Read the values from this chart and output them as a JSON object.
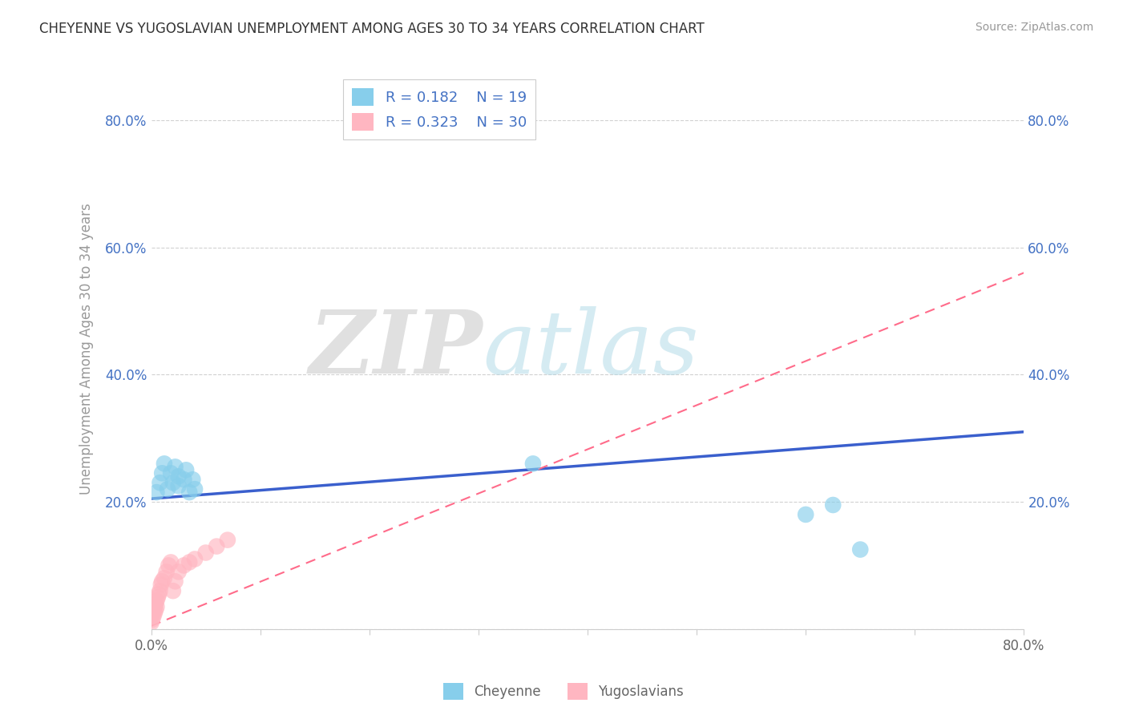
{
  "title": "CHEYENNE VS YUGOSLAVIAN UNEMPLOYMENT AMONG AGES 30 TO 34 YEARS CORRELATION CHART",
  "source_text": "Source: ZipAtlas.com",
  "ylabel": "Unemployment Among Ages 30 to 34 years",
  "xlim": [
    0.0,
    0.8
  ],
  "ylim": [
    0.0,
    0.88
  ],
  "cheyenne_color": "#87CEEB",
  "yugoslavian_color": "#FFB6C1",
  "cheyenne_line_color": "#3A5FCD",
  "yugoslavian_line_color": "#FF6B8A",
  "cheyenne_R": 0.182,
  "cheyenne_N": 19,
  "yugoslavian_R": 0.323,
  "yugoslavian_N": 30,
  "watermark_zip": "ZIP",
  "watermark_atlas": "atlas",
  "background_color": "#FFFFFF",
  "grid_color": "#CCCCCC",
  "cheyenne_x": [
    0.005,
    0.008,
    0.01,
    0.012,
    0.015,
    0.018,
    0.02,
    0.022,
    0.025,
    0.025,
    0.03,
    0.032,
    0.035,
    0.038,
    0.04,
    0.35,
    0.6,
    0.625,
    0.65
  ],
  "cheyenne_y": [
    0.215,
    0.23,
    0.245,
    0.26,
    0.22,
    0.245,
    0.23,
    0.255,
    0.225,
    0.24,
    0.235,
    0.25,
    0.215,
    0.235,
    0.22,
    0.26,
    0.18,
    0.195,
    0.125
  ],
  "yugoslavian_x": [
    0.0,
    0.0,
    0.001,
    0.001,
    0.002,
    0.002,
    0.003,
    0.003,
    0.004,
    0.004,
    0.005,
    0.005,
    0.006,
    0.007,
    0.008,
    0.009,
    0.01,
    0.012,
    0.014,
    0.016,
    0.018,
    0.02,
    0.022,
    0.025,
    0.03,
    0.035,
    0.04,
    0.05,
    0.06,
    0.07
  ],
  "yugoslavian_y": [
    0.01,
    0.02,
    0.015,
    0.025,
    0.02,
    0.03,
    0.025,
    0.035,
    0.03,
    0.04,
    0.035,
    0.045,
    0.05,
    0.055,
    0.06,
    0.07,
    0.075,
    0.08,
    0.09,
    0.1,
    0.105,
    0.06,
    0.075,
    0.09,
    0.1,
    0.105,
    0.11,
    0.12,
    0.13,
    0.14
  ],
  "cheyenne_line_x0": 0.0,
  "cheyenne_line_x1": 0.8,
  "cheyenne_line_y0": 0.205,
  "cheyenne_line_y1": 0.31,
  "yugo_line_x0": 0.0,
  "yugo_line_x1": 0.8,
  "yugo_line_y0": 0.005,
  "yugo_line_y1": 0.56
}
